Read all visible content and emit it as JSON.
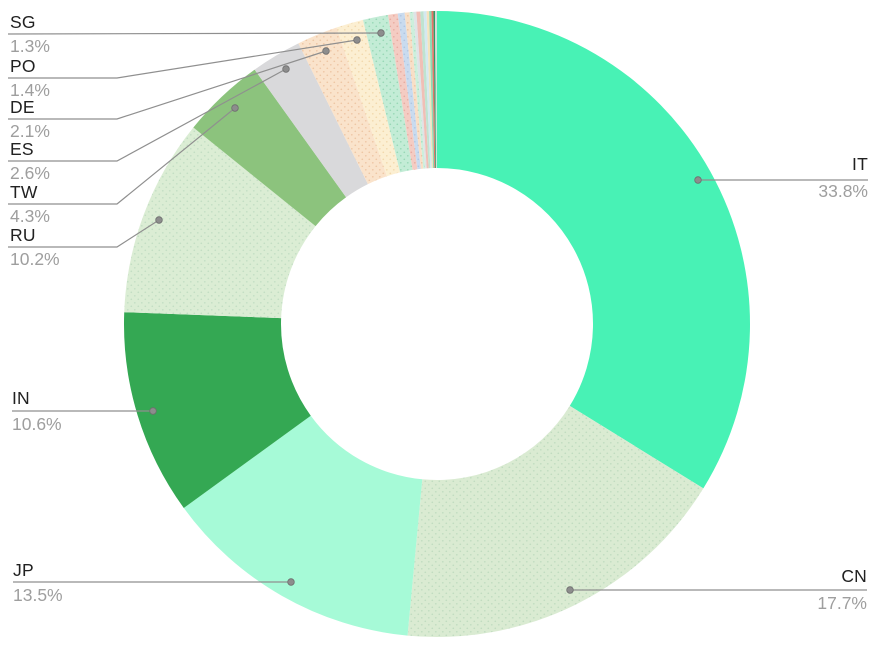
{
  "chart_data": {
    "type": "pie",
    "variant": "donut",
    "title": "",
    "direction": "clockwise-from-top",
    "donut_hole_ratio": 0.5,
    "background": "#ffffff",
    "slices": [
      {
        "code": "IT",
        "pct_label": "33.8%",
        "value": 33.8,
        "color": "#48F2B5",
        "dotted": false
      },
      {
        "code": "CN",
        "pct_label": "17.7%",
        "value": 17.7,
        "color": "#DAEBD2",
        "dot_color": "#C0DCC0",
        "dotted": true
      },
      {
        "code": "JP",
        "pct_label": "13.5%",
        "value": 13.5,
        "color": "#A6FAD7",
        "dotted": false
      },
      {
        "code": "IN",
        "pct_label": "10.6%",
        "value": 10.6,
        "color": "#34A853",
        "dotted": false
      },
      {
        "code": "RU",
        "pct_label": "10.2%",
        "value": 10.2,
        "color": "#DBEDD4",
        "dot_color": "#C2DEC3",
        "dotted": true
      },
      {
        "code": "TW",
        "pct_label": "4.3%",
        "value": 4.3,
        "color": "#8CC37D",
        "dotted": false
      },
      {
        "code": "ES",
        "pct_label": "2.6%",
        "value": 2.6,
        "color": "#D9D9DB",
        "dotted": false
      },
      {
        "code": "DE",
        "pct_label": "2.1%",
        "value": 2.1,
        "color": "#FAE3CB",
        "dot_color": "#EEC6A4",
        "dotted": true
      },
      {
        "code": "PO",
        "pct_label": "1.4%",
        "value": 1.4,
        "color": "#FCEFD2",
        "dot_color": "#F2D8AC",
        "dotted": true
      },
      {
        "code": "SG",
        "pct_label": "1.3%",
        "value": 1.3,
        "color": "#C3ECD6",
        "dot_color": "#96D8B5",
        "dotted": true
      },
      {
        "code": "",
        "pct_label": "",
        "value": 0.5,
        "color": "#F4CCC3",
        "dot_color": "#E8ABA0",
        "dotted": true
      },
      {
        "code": "",
        "pct_label": "",
        "value": 0.35,
        "color": "#C9DBEF",
        "dot_color": "#AFC6E2",
        "dotted": true
      },
      {
        "code": "",
        "pct_label": "",
        "value": 0.25,
        "color": "#F8DFC7",
        "dot_color": "#EBC3A2",
        "dotted": true
      },
      {
        "code": "",
        "pct_label": "",
        "value": 0.2,
        "color": "#CDEFDC",
        "dot_color": "#A5DFC2",
        "dotted": true
      },
      {
        "code": "",
        "pct_label": "",
        "value": 0.15,
        "color": "#DFE3E6",
        "dotted": false
      },
      {
        "code": "",
        "pct_label": "",
        "value": 0.2,
        "color": "#F0BFB6",
        "dotted": false
      },
      {
        "code": "",
        "pct_label": "",
        "value": 0.17,
        "color": "#BFE3D0",
        "dotted": false
      },
      {
        "code": "",
        "pct_label": "",
        "value": 0.15,
        "color": "#D4E8F0",
        "dotted": false
      },
      {
        "code": "",
        "pct_label": "",
        "value": 0.13,
        "color": "#F4E3BC",
        "dotted": false
      },
      {
        "code": "",
        "pct_label": "",
        "value": 0.12,
        "color": "#8FD9B4",
        "dotted": false
      },
      {
        "code": "",
        "pct_label": "",
        "value": 0.1,
        "color": "#E57368",
        "dotted": false
      },
      {
        "code": "",
        "pct_label": "",
        "value": 0.08,
        "color": "#2E9E68",
        "dotted": false
      },
      {
        "code": "",
        "pct_label": "",
        "value": 0.1,
        "color": "#CFE0DA",
        "dotted": false
      }
    ],
    "style": {
      "label_code_color": "#212121",
      "label_pct_color": "#9e9e9e",
      "leader_line_color": "#8f8f8f",
      "leader_dot_color": "#8d8d8d"
    }
  }
}
